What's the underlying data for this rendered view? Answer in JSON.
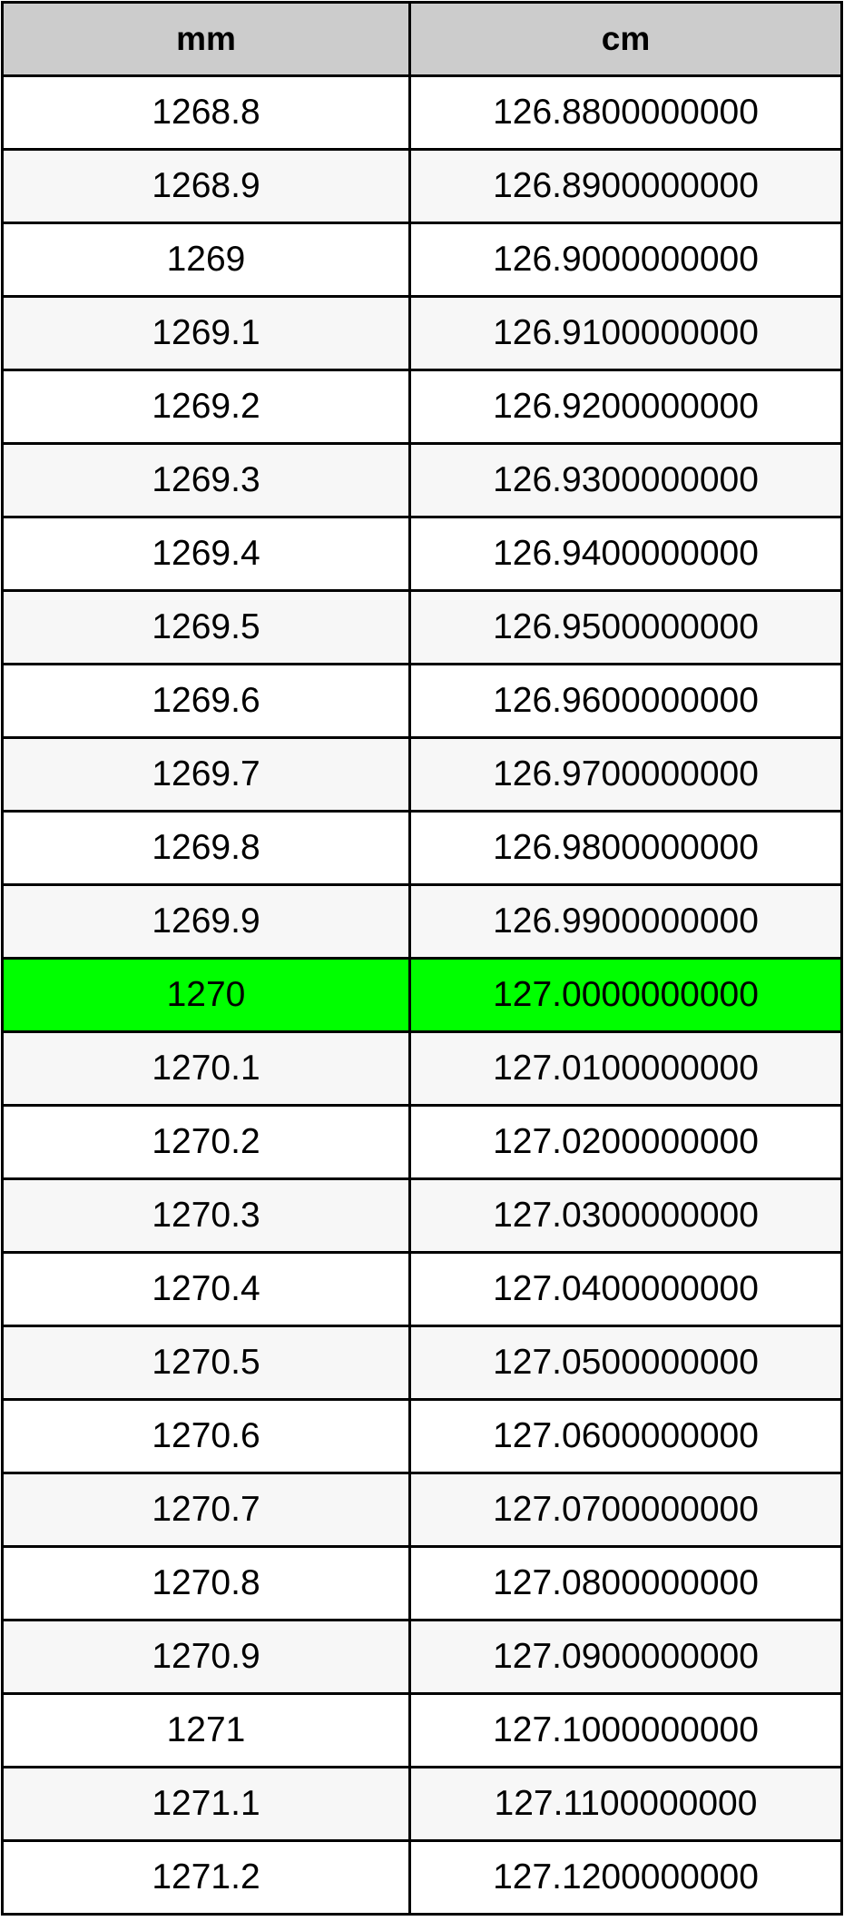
{
  "table": {
    "headers": [
      "mm",
      "cm"
    ],
    "highlight_color": "#00ff00",
    "highlighted_row": 12,
    "rows": [
      [
        "1268.8",
        "126.8800000000"
      ],
      [
        "1268.9",
        "126.8900000000"
      ],
      [
        "1269",
        "126.9000000000"
      ],
      [
        "1269.1",
        "126.9100000000"
      ],
      [
        "1269.2",
        "126.9200000000"
      ],
      [
        "1269.3",
        "126.9300000000"
      ],
      [
        "1269.4",
        "126.9400000000"
      ],
      [
        "1269.5",
        "126.9500000000"
      ],
      [
        "1269.6",
        "126.9600000000"
      ],
      [
        "1269.7",
        "126.9700000000"
      ],
      [
        "1269.8",
        "126.9800000000"
      ],
      [
        "1269.9",
        "126.9900000000"
      ],
      [
        "1270",
        "127.0000000000"
      ],
      [
        "1270.1",
        "127.0100000000"
      ],
      [
        "1270.2",
        "127.0200000000"
      ],
      [
        "1270.3",
        "127.0300000000"
      ],
      [
        "1270.4",
        "127.0400000000"
      ],
      [
        "1270.5",
        "127.0500000000"
      ],
      [
        "1270.6",
        "127.0600000000"
      ],
      [
        "1270.7",
        "127.0700000000"
      ],
      [
        "1270.8",
        "127.0800000000"
      ],
      [
        "1270.9",
        "127.0900000000"
      ],
      [
        "1271",
        "127.1000000000"
      ],
      [
        "1271.1",
        "127.1100000000"
      ],
      [
        "1271.2",
        "127.1200000000"
      ]
    ]
  }
}
